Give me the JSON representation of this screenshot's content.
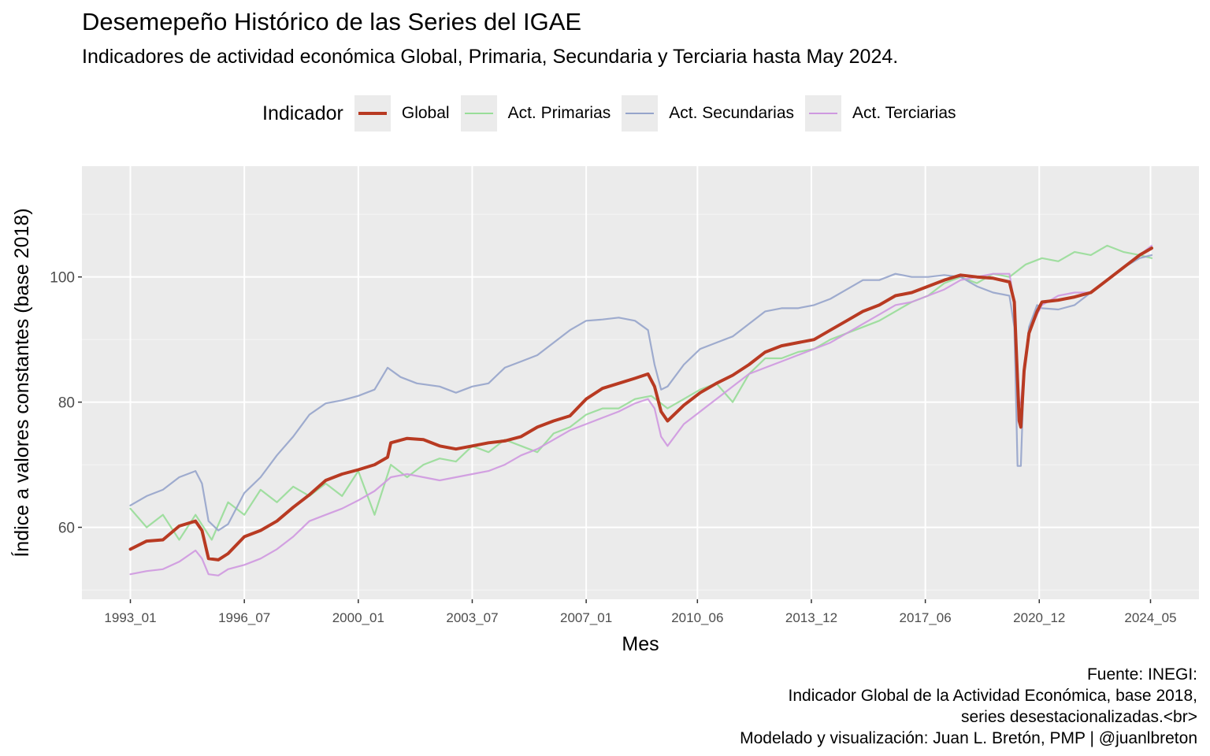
{
  "title": "Desemepeño Histórico de las Series del IGAE",
  "subtitle": "Indicadores de actividad económica Global, Primaria, Secundaria y Terciaria hasta May 2024.",
  "legend": {
    "title": "Indicador",
    "items": [
      {
        "label": "Global",
        "color": "#b83a22"
      },
      {
        "label": "Act. Primarias",
        "color": "#98dd98"
      },
      {
        "label": "Act. Secundarias",
        "color": "#96a4cb"
      },
      {
        "label": "Act. Terciarias",
        "color": "#cf98e0"
      }
    ]
  },
  "caption": {
    "line1": "Fuente: INEGI:",
    "line2": "Indicador Global de la Actividad Económica, base 2018,",
    "line3": "series desestacionalizadas.<br>",
    "line4": "Modelado y visualización: Juan L. Bretón, PMP | @juanlbreton"
  },
  "chart_data": {
    "type": "line",
    "xlabel": "Mes",
    "ylabel": "Índice a valores constantes (base 2018)",
    "x_tick_labels": [
      "1993_01",
      "1996_07",
      "2000_01",
      "2003_07",
      "2007_01",
      "2010_06",
      "2013_12",
      "2017_06",
      "2020_12",
      "2024_05"
    ],
    "y_ticks": [
      60,
      80,
      100
    ],
    "ylim": [
      48.5,
      117.7
    ],
    "x_range": [
      "1993_01",
      "2024_05"
    ],
    "grid": true,
    "legend_position": "top",
    "series": [
      {
        "name": "Global",
        "color": "#b83a22",
        "points": [
          [
            1993.0,
            56.5
          ],
          [
            1993.5,
            57.8
          ],
          [
            1994.0,
            58.0
          ],
          [
            1994.5,
            60.2
          ],
          [
            1995.0,
            61.0
          ],
          [
            1995.2,
            59.5
          ],
          [
            1995.4,
            55.0
          ],
          [
            1995.7,
            54.8
          ],
          [
            1996.0,
            55.8
          ],
          [
            1996.5,
            58.5
          ],
          [
            1997.0,
            59.5
          ],
          [
            1997.5,
            61.0
          ],
          [
            1998.0,
            63.2
          ],
          [
            1998.5,
            65.2
          ],
          [
            1999.0,
            67.5
          ],
          [
            1999.5,
            68.5
          ],
          [
            2000.0,
            69.2
          ],
          [
            2000.5,
            70.0
          ],
          [
            2000.9,
            71.2
          ],
          [
            2001.0,
            73.5
          ],
          [
            2001.5,
            74.2
          ],
          [
            2002.0,
            74.0
          ],
          [
            2002.5,
            73.0
          ],
          [
            2003.0,
            72.5
          ],
          [
            2003.5,
            73.0
          ],
          [
            2004.0,
            73.5
          ],
          [
            2004.5,
            73.8
          ],
          [
            2005.0,
            74.5
          ],
          [
            2005.5,
            76.0
          ],
          [
            2006.0,
            77.0
          ],
          [
            2006.5,
            77.8
          ],
          [
            2007.0,
            80.5
          ],
          [
            2007.5,
            82.2
          ],
          [
            2008.0,
            83.0
          ],
          [
            2008.5,
            83.8
          ],
          [
            2008.9,
            84.5
          ],
          [
            2009.1,
            82.5
          ],
          [
            2009.3,
            78.5
          ],
          [
            2009.5,
            77.0
          ],
          [
            2010.0,
            79.5
          ],
          [
            2010.5,
            81.5
          ],
          [
            2011.0,
            83.0
          ],
          [
            2011.5,
            84.3
          ],
          [
            2012.0,
            86.0
          ],
          [
            2012.5,
            88.0
          ],
          [
            2013.0,
            89.0
          ],
          [
            2013.5,
            89.5
          ],
          [
            2014.0,
            90.0
          ],
          [
            2014.5,
            91.5
          ],
          [
            2015.0,
            93.0
          ],
          [
            2015.5,
            94.5
          ],
          [
            2016.0,
            95.5
          ],
          [
            2016.5,
            97.0
          ],
          [
            2017.0,
            97.5
          ],
          [
            2017.5,
            98.5
          ],
          [
            2018.0,
            99.5
          ],
          [
            2018.5,
            100.3
          ],
          [
            2019.0,
            100.0
          ],
          [
            2019.5,
            99.8
          ],
          [
            2020.0,
            99.2
          ],
          [
            2020.15,
            96.0
          ],
          [
            2020.3,
            77.0
          ],
          [
            2020.35,
            76.0
          ],
          [
            2020.45,
            85.0
          ],
          [
            2020.6,
            91.0
          ],
          [
            2020.85,
            94.5
          ],
          [
            2021.0,
            96.0
          ],
          [
            2021.5,
            96.3
          ],
          [
            2022.0,
            96.8
          ],
          [
            2022.5,
            97.5
          ],
          [
            2023.0,
            99.5
          ],
          [
            2023.5,
            101.5
          ],
          [
            2024.0,
            103.5
          ],
          [
            2024.37,
            104.6
          ]
        ]
      },
      {
        "name": "Act. Primarias",
        "color": "#98dd98",
        "points": [
          [
            1993.0,
            63.0
          ],
          [
            1993.5,
            60.0
          ],
          [
            1994.0,
            62.0
          ],
          [
            1994.5,
            58.0
          ],
          [
            1995.0,
            62.0
          ],
          [
            1995.5,
            58.0
          ],
          [
            1996.0,
            64.0
          ],
          [
            1996.5,
            62.0
          ],
          [
            1997.0,
            66.0
          ],
          [
            1997.5,
            64.0
          ],
          [
            1998.0,
            66.5
          ],
          [
            1998.5,
            65.0
          ],
          [
            1999.0,
            67.0
          ],
          [
            1999.5,
            65.0
          ],
          [
            2000.0,
            69.0
          ],
          [
            2000.5,
            62.0
          ],
          [
            2001.0,
            70.0
          ],
          [
            2001.5,
            68.0
          ],
          [
            2002.0,
            70.0
          ],
          [
            2002.5,
            71.0
          ],
          [
            2003.0,
            70.5
          ],
          [
            2003.5,
            73.0
          ],
          [
            2004.0,
            72.0
          ],
          [
            2004.5,
            74.0
          ],
          [
            2005.0,
            73.0
          ],
          [
            2005.5,
            72.0
          ],
          [
            2006.0,
            75.0
          ],
          [
            2006.5,
            76.0
          ],
          [
            2007.0,
            78.0
          ],
          [
            2007.5,
            79.0
          ],
          [
            2008.0,
            79.0
          ],
          [
            2008.5,
            80.5
          ],
          [
            2009.0,
            81.0
          ],
          [
            2009.5,
            79.0
          ],
          [
            2010.0,
            80.5
          ],
          [
            2010.5,
            82.0
          ],
          [
            2011.0,
            83.0
          ],
          [
            2011.5,
            80.0
          ],
          [
            2012.0,
            84.5
          ],
          [
            2012.5,
            87.0
          ],
          [
            2013.0,
            87.0
          ],
          [
            2013.5,
            88.0
          ],
          [
            2014.0,
            88.5
          ],
          [
            2014.5,
            90.0
          ],
          [
            2015.0,
            91.0
          ],
          [
            2015.5,
            92.0
          ],
          [
            2016.0,
            93.0
          ],
          [
            2016.5,
            94.5
          ],
          [
            2017.0,
            96.0
          ],
          [
            2017.5,
            97.0
          ],
          [
            2018.0,
            99.0
          ],
          [
            2018.5,
            100.0
          ],
          [
            2019.0,
            99.0
          ],
          [
            2019.5,
            100.5
          ],
          [
            2020.0,
            100.0
          ],
          [
            2020.5,
            102.0
          ],
          [
            2021.0,
            103.0
          ],
          [
            2021.5,
            102.5
          ],
          [
            2022.0,
            104.0
          ],
          [
            2022.5,
            103.5
          ],
          [
            2023.0,
            105.0
          ],
          [
            2023.5,
            104.0
          ],
          [
            2024.0,
            103.5
          ],
          [
            2024.37,
            103.0
          ]
        ]
      },
      {
        "name": "Act. Secundarias",
        "color": "#96a4cb",
        "points": [
          [
            1993.0,
            63.5
          ],
          [
            1993.5,
            65.0
          ],
          [
            1994.0,
            66.0
          ],
          [
            1994.5,
            68.0
          ],
          [
            1995.0,
            69.0
          ],
          [
            1995.2,
            67.0
          ],
          [
            1995.4,
            61.0
          ],
          [
            1995.7,
            59.5
          ],
          [
            1996.0,
            60.5
          ],
          [
            1996.5,
            65.5
          ],
          [
            1997.0,
            68.0
          ],
          [
            1997.5,
            71.5
          ],
          [
            1998.0,
            74.5
          ],
          [
            1998.5,
            78.0
          ],
          [
            1999.0,
            79.8
          ],
          [
            1999.5,
            80.3
          ],
          [
            2000.0,
            81.0
          ],
          [
            2000.5,
            82.0
          ],
          [
            2000.9,
            85.5
          ],
          [
            2001.3,
            84.0
          ],
          [
            2001.8,
            83.0
          ],
          [
            2002.5,
            82.5
          ],
          [
            2003.0,
            81.5
          ],
          [
            2003.5,
            82.5
          ],
          [
            2004.0,
            83.0
          ],
          [
            2004.5,
            85.5
          ],
          [
            2005.0,
            86.5
          ],
          [
            2005.5,
            87.5
          ],
          [
            2006.0,
            89.5
          ],
          [
            2006.5,
            91.5
          ],
          [
            2007.0,
            93.0
          ],
          [
            2007.5,
            93.2
          ],
          [
            2008.0,
            93.5
          ],
          [
            2008.5,
            93.0
          ],
          [
            2008.9,
            91.5
          ],
          [
            2009.1,
            86.0
          ],
          [
            2009.3,
            82.0
          ],
          [
            2009.5,
            82.5
          ],
          [
            2010.0,
            86.0
          ],
          [
            2010.5,
            88.5
          ],
          [
            2011.0,
            89.5
          ],
          [
            2011.5,
            90.5
          ],
          [
            2012.0,
            92.5
          ],
          [
            2012.5,
            94.5
          ],
          [
            2013.0,
            95.0
          ],
          [
            2013.5,
            95.0
          ],
          [
            2014.0,
            95.5
          ],
          [
            2014.5,
            96.5
          ],
          [
            2015.0,
            98.0
          ],
          [
            2015.5,
            99.5
          ],
          [
            2016.0,
            99.5
          ],
          [
            2016.5,
            100.5
          ],
          [
            2017.0,
            100.0
          ],
          [
            2017.5,
            100.0
          ],
          [
            2018.0,
            100.3
          ],
          [
            2018.5,
            100.0
          ],
          [
            2019.0,
            98.5
          ],
          [
            2019.5,
            97.5
          ],
          [
            2020.0,
            97.0
          ],
          [
            2020.15,
            92.0
          ],
          [
            2020.25,
            69.8
          ],
          [
            2020.35,
            69.8
          ],
          [
            2020.45,
            85.0
          ],
          [
            2020.6,
            92.0
          ],
          [
            2020.85,
            95.5
          ],
          [
            2021.0,
            95.0
          ],
          [
            2021.5,
            94.8
          ],
          [
            2022.0,
            95.5
          ],
          [
            2022.5,
            97.5
          ],
          [
            2023.0,
            99.5
          ],
          [
            2023.5,
            101.5
          ],
          [
            2024.0,
            103.0
          ],
          [
            2024.37,
            103.5
          ]
        ]
      },
      {
        "name": "Act. Terciarias",
        "color": "#cf98e0",
        "points": [
          [
            1993.0,
            52.5
          ],
          [
            1993.5,
            53.0
          ],
          [
            1994.0,
            53.3
          ],
          [
            1994.5,
            54.5
          ],
          [
            1995.0,
            56.3
          ],
          [
            1995.2,
            55.0
          ],
          [
            1995.4,
            52.5
          ],
          [
            1995.7,
            52.3
          ],
          [
            1996.0,
            53.3
          ],
          [
            1996.5,
            54.0
          ],
          [
            1997.0,
            55.0
          ],
          [
            1997.5,
            56.5
          ],
          [
            1998.0,
            58.5
          ],
          [
            1998.5,
            61.0
          ],
          [
            1999.0,
            62.0
          ],
          [
            1999.5,
            63.0
          ],
          [
            2000.0,
            64.3
          ],
          [
            2000.5,
            65.8
          ],
          [
            2001.0,
            68.0
          ],
          [
            2001.5,
            68.5
          ],
          [
            2002.0,
            68.0
          ],
          [
            2002.5,
            67.5
          ],
          [
            2003.0,
            68.0
          ],
          [
            2003.5,
            68.5
          ],
          [
            2004.0,
            69.0
          ],
          [
            2004.5,
            70.0
          ],
          [
            2005.0,
            71.5
          ],
          [
            2005.5,
            72.5
          ],
          [
            2006.0,
            74.0
          ],
          [
            2006.5,
            75.5
          ],
          [
            2007.0,
            76.5
          ],
          [
            2007.5,
            77.5
          ],
          [
            2008.0,
            78.5
          ],
          [
            2008.5,
            79.8
          ],
          [
            2008.9,
            80.5
          ],
          [
            2009.1,
            79.0
          ],
          [
            2009.3,
            74.5
          ],
          [
            2009.5,
            73.0
          ],
          [
            2010.0,
            76.5
          ],
          [
            2010.5,
            78.5
          ],
          [
            2011.0,
            80.5
          ],
          [
            2011.5,
            82.5
          ],
          [
            2012.0,
            84.5
          ],
          [
            2012.5,
            85.5
          ],
          [
            2013.0,
            86.5
          ],
          [
            2013.5,
            87.5
          ],
          [
            2014.0,
            88.5
          ],
          [
            2014.5,
            89.5
          ],
          [
            2015.0,
            91.0
          ],
          [
            2015.5,
            92.5
          ],
          [
            2016.0,
            94.0
          ],
          [
            2016.5,
            95.5
          ],
          [
            2017.0,
            96.0
          ],
          [
            2017.5,
            97.0
          ],
          [
            2018.0,
            98.0
          ],
          [
            2018.5,
            99.5
          ],
          [
            2019.0,
            100.0
          ],
          [
            2019.5,
            100.5
          ],
          [
            2020.0,
            100.5
          ],
          [
            2020.15,
            96.0
          ],
          [
            2020.3,
            80.0
          ],
          [
            2020.35,
            79.5
          ],
          [
            2020.45,
            86.0
          ],
          [
            2020.6,
            91.0
          ],
          [
            2020.85,
            94.0
          ],
          [
            2021.0,
            95.5
          ],
          [
            2021.5,
            97.0
          ],
          [
            2022.0,
            97.5
          ],
          [
            2022.5,
            97.5
          ],
          [
            2023.0,
            99.5
          ],
          [
            2023.5,
            101.5
          ],
          [
            2024.0,
            103.5
          ],
          [
            2024.37,
            105.0
          ]
        ]
      }
    ]
  }
}
